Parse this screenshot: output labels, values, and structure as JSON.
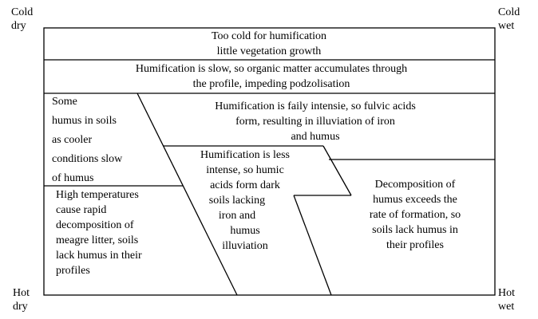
{
  "corners": {
    "cold_dry": [
      "Cold",
      "dry"
    ],
    "cold_wet": [
      "Cold",
      "wet"
    ],
    "hot_dry": [
      "Hot",
      "dry"
    ],
    "hot_wet": [
      "Hot",
      "wet"
    ]
  },
  "regions": [
    {
      "lines": [
        "Too cold for humification",
        "little vegetation growth"
      ]
    },
    {
      "lines": [
        "Humification is slow, so organic matter accumulates through",
        "the profile, impeding podzolisation"
      ]
    },
    {
      "lines": [
        "Some",
        "humus in soils",
        "as cooler",
        "conditions slow",
        "of humus"
      ]
    },
    {
      "lines": [
        "Humification is faily intensie, so fulvic acids",
        "form, resulting in illuviation of iron",
        "and humus"
      ]
    },
    {
      "lines": [
        "Humification is less",
        "intense, so humic",
        "acids form dark",
        "soils lacking",
        "iron and",
        "humus",
        "illuviation"
      ]
    },
    {
      "lines": [
        "High temperatures",
        "cause rapid",
        "decomposition of",
        "meagre litter, soils",
        "lack humus in their",
        "profiles"
      ]
    },
    {
      "lines": [
        "Decomposition of",
        "humus exceeds the",
        "rate of formation, so",
        "soils lack humus in",
        "their profiles"
      ]
    }
  ]
}
